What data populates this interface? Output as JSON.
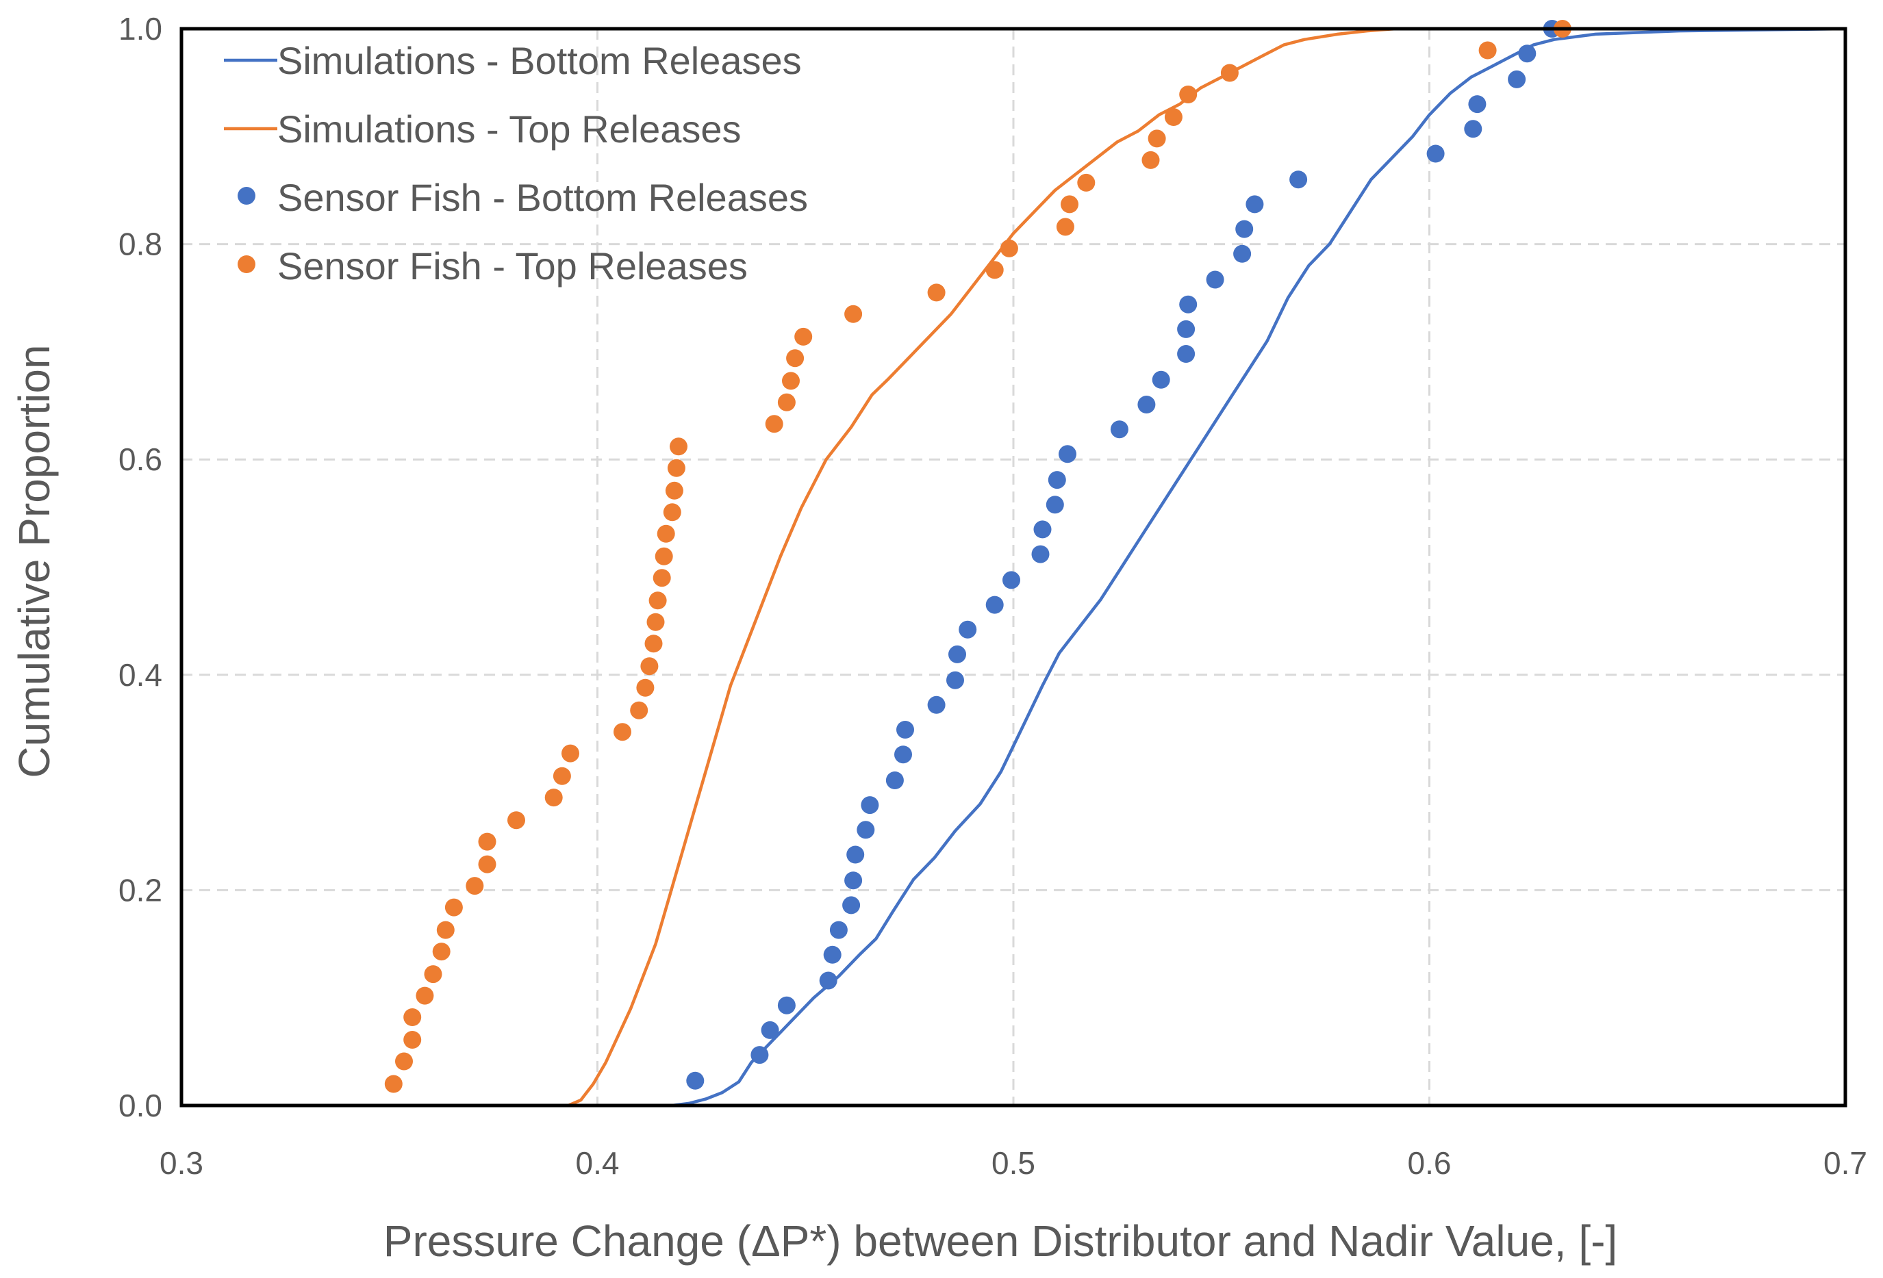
{
  "chart_data": {
    "type": "scatter",
    "title": "",
    "xlabel": "Pressure Change (ΔP*) between Distributor and Nadir Value, [-]",
    "ylabel": "Cumulative Proportion",
    "xlim": [
      0.3,
      0.7
    ],
    "ylim": [
      0.0,
      1.0
    ],
    "x_ticks": [
      0.3,
      0.4,
      0.5,
      0.6,
      0.7
    ],
    "x_tick_labels": [
      "0.3",
      "0.4",
      "0.5",
      "0.6",
      "0.7"
    ],
    "y_ticks": [
      0.0,
      0.2,
      0.4,
      0.6,
      0.8,
      1.0
    ],
    "y_tick_labels": [
      "0.0",
      "0.2",
      "0.4",
      "0.6",
      "0.8",
      "1.0"
    ],
    "grid": true,
    "legend_position": "top-left",
    "series": [
      {
        "name": "Simulations - Bottom Releases",
        "kind": "line",
        "color": "#4472C4",
        "points": [
          [
            0.414,
            0.0
          ],
          [
            0.418,
            0.0
          ],
          [
            0.422,
            0.002
          ],
          [
            0.426,
            0.006
          ],
          [
            0.43,
            0.012
          ],
          [
            0.434,
            0.022
          ],
          [
            0.437,
            0.04
          ],
          [
            0.442,
            0.06
          ],
          [
            0.447,
            0.08
          ],
          [
            0.452,
            0.1
          ],
          [
            0.458,
            0.12
          ],
          [
            0.463,
            0.14
          ],
          [
            0.467,
            0.155
          ],
          [
            0.471,
            0.18
          ],
          [
            0.476,
            0.21
          ],
          [
            0.481,
            0.23
          ],
          [
            0.486,
            0.255
          ],
          [
            0.492,
            0.28
          ],
          [
            0.497,
            0.31
          ],
          [
            0.502,
            0.35
          ],
          [
            0.507,
            0.39
          ],
          [
            0.511,
            0.42
          ],
          [
            0.516,
            0.445
          ],
          [
            0.521,
            0.47
          ],
          [
            0.526,
            0.5
          ],
          [
            0.531,
            0.53
          ],
          [
            0.536,
            0.56
          ],
          [
            0.541,
            0.59
          ],
          [
            0.546,
            0.62
          ],
          [
            0.551,
            0.65
          ],
          [
            0.556,
            0.68
          ],
          [
            0.561,
            0.71
          ],
          [
            0.566,
            0.75
          ],
          [
            0.571,
            0.78
          ],
          [
            0.576,
            0.8
          ],
          [
            0.581,
            0.83
          ],
          [
            0.586,
            0.86
          ],
          [
            0.591,
            0.88
          ],
          [
            0.596,
            0.9
          ],
          [
            0.6,
            0.92
          ],
          [
            0.605,
            0.94
          ],
          [
            0.61,
            0.955
          ],
          [
            0.615,
            0.965
          ],
          [
            0.62,
            0.975
          ],
          [
            0.625,
            0.985
          ],
          [
            0.63,
            0.99
          ],
          [
            0.64,
            0.995
          ],
          [
            0.66,
            0.998
          ],
          [
            0.7,
            1.0
          ]
        ]
      },
      {
        "name": "Simulations - Top Releases",
        "kind": "line",
        "color": "#ED7D31",
        "points": [
          [
            0.386,
            0.0
          ],
          [
            0.393,
            0.0
          ],
          [
            0.396,
            0.005
          ],
          [
            0.399,
            0.02
          ],
          [
            0.402,
            0.04
          ],
          [
            0.405,
            0.065
          ],
          [
            0.408,
            0.09
          ],
          [
            0.411,
            0.12
          ],
          [
            0.414,
            0.15
          ],
          [
            0.417,
            0.19
          ],
          [
            0.42,
            0.23
          ],
          [
            0.423,
            0.27
          ],
          [
            0.426,
            0.31
          ],
          [
            0.429,
            0.35
          ],
          [
            0.432,
            0.39
          ],
          [
            0.436,
            0.43
          ],
          [
            0.44,
            0.47
          ],
          [
            0.444,
            0.51
          ],
          [
            0.449,
            0.555
          ],
          [
            0.455,
            0.6
          ],
          [
            0.461,
            0.63
          ],
          [
            0.466,
            0.66
          ],
          [
            0.47,
            0.675
          ],
          [
            0.475,
            0.695
          ],
          [
            0.48,
            0.715
          ],
          [
            0.485,
            0.735
          ],
          [
            0.49,
            0.76
          ],
          [
            0.495,
            0.785
          ],
          [
            0.5,
            0.81
          ],
          [
            0.505,
            0.83
          ],
          [
            0.51,
            0.85
          ],
          [
            0.515,
            0.865
          ],
          [
            0.52,
            0.88
          ],
          [
            0.525,
            0.895
          ],
          [
            0.53,
            0.905
          ],
          [
            0.535,
            0.92
          ],
          [
            0.54,
            0.93
          ],
          [
            0.545,
            0.945
          ],
          [
            0.55,
            0.955
          ],
          [
            0.555,
            0.965
          ],
          [
            0.56,
            0.975
          ],
          [
            0.565,
            0.985
          ],
          [
            0.57,
            0.99
          ],
          [
            0.578,
            0.995
          ],
          [
            0.585,
            0.998
          ],
          [
            0.592,
            1.0
          ]
        ]
      },
      {
        "name": "Sensor Fish - Bottom Releases",
        "kind": "scatter",
        "color": "#4472C4",
        "points": [
          [
            0.4235,
            0.023
          ],
          [
            0.439,
            0.047
          ],
          [
            0.4415,
            0.07
          ],
          [
            0.4455,
            0.093
          ],
          [
            0.4555,
            0.116
          ],
          [
            0.4565,
            0.14
          ],
          [
            0.458,
            0.163
          ],
          [
            0.461,
            0.186
          ],
          [
            0.4615,
            0.209
          ],
          [
            0.462,
            0.233
          ],
          [
            0.4645,
            0.256
          ],
          [
            0.4655,
            0.279
          ],
          [
            0.4715,
            0.302
          ],
          [
            0.4735,
            0.326
          ],
          [
            0.474,
            0.349
          ],
          [
            0.4815,
            0.372
          ],
          [
            0.486,
            0.395
          ],
          [
            0.4865,
            0.419
          ],
          [
            0.489,
            0.442
          ],
          [
            0.4955,
            0.465
          ],
          [
            0.4995,
            0.488
          ],
          [
            0.5065,
            0.512
          ],
          [
            0.507,
            0.535
          ],
          [
            0.51,
            0.558
          ],
          [
            0.5105,
            0.581
          ],
          [
            0.513,
            0.605
          ],
          [
            0.5255,
            0.628
          ],
          [
            0.532,
            0.651
          ],
          [
            0.5355,
            0.674
          ],
          [
            0.5415,
            0.698
          ],
          [
            0.5415,
            0.721
          ],
          [
            0.542,
            0.744
          ],
          [
            0.5485,
            0.767
          ],
          [
            0.555,
            0.791
          ],
          [
            0.5555,
            0.814
          ],
          [
            0.558,
            0.837
          ],
          [
            0.5685,
            0.86
          ],
          [
            0.6015,
            0.884
          ],
          [
            0.6105,
            0.907
          ],
          [
            0.6115,
            0.93
          ],
          [
            0.621,
            0.953
          ],
          [
            0.6235,
            0.977
          ],
          [
            0.6295,
            1.0
          ]
        ]
      },
      {
        "name": "Sensor Fish - Top Releases",
        "kind": "scatter",
        "color": "#ED7D31",
        "points": [
          [
            0.351,
            0.02
          ],
          [
            0.3535,
            0.041
          ],
          [
            0.3555,
            0.061
          ],
          [
            0.3555,
            0.082
          ],
          [
            0.3585,
            0.102
          ],
          [
            0.3605,
            0.122
          ],
          [
            0.3625,
            0.143
          ],
          [
            0.3635,
            0.163
          ],
          [
            0.3655,
            0.184
          ],
          [
            0.3705,
            0.204
          ],
          [
            0.3735,
            0.224
          ],
          [
            0.3735,
            0.245
          ],
          [
            0.3805,
            0.265
          ],
          [
            0.3895,
            0.286
          ],
          [
            0.3915,
            0.306
          ],
          [
            0.3935,
            0.327
          ],
          [
            0.406,
            0.347
          ],
          [
            0.41,
            0.367
          ],
          [
            0.4115,
            0.388
          ],
          [
            0.4125,
            0.408
          ],
          [
            0.4135,
            0.429
          ],
          [
            0.414,
            0.449
          ],
          [
            0.4145,
            0.469
          ],
          [
            0.4155,
            0.49
          ],
          [
            0.416,
            0.51
          ],
          [
            0.4165,
            0.531
          ],
          [
            0.418,
            0.551
          ],
          [
            0.4185,
            0.571
          ],
          [
            0.419,
            0.592
          ],
          [
            0.4195,
            0.612
          ],
          [
            0.4425,
            0.633
          ],
          [
            0.4455,
            0.653
          ],
          [
            0.4465,
            0.673
          ],
          [
            0.4475,
            0.694
          ],
          [
            0.4495,
            0.714
          ],
          [
            0.4615,
            0.735
          ],
          [
            0.4815,
            0.755
          ],
          [
            0.4955,
            0.776
          ],
          [
            0.499,
            0.796
          ],
          [
            0.5125,
            0.816
          ],
          [
            0.5135,
            0.837
          ],
          [
            0.5175,
            0.857
          ],
          [
            0.533,
            0.878
          ],
          [
            0.5345,
            0.898
          ],
          [
            0.5385,
            0.918
          ],
          [
            0.542,
            0.939
          ],
          [
            0.552,
            0.959
          ],
          [
            0.614,
            0.98
          ],
          [
            0.632,
            1.0
          ]
        ]
      }
    ]
  }
}
